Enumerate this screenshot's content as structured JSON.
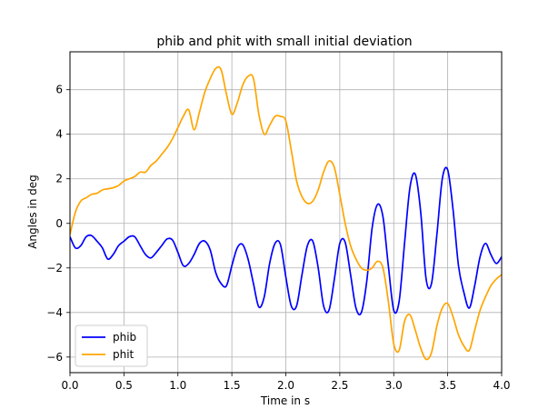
{
  "chart_data": {
    "type": "line",
    "title": "phib and phit with small initial deviation",
    "xlabel": "Time in s",
    "ylabel": "Angles in deg",
    "xlim": [
      0,
      4
    ],
    "ylim": [
      -6.7,
      7.7
    ],
    "xticks": [
      0,
      0.5,
      1,
      1.5,
      2,
      2.5,
      3,
      3.5,
      4
    ],
    "xtick_labels": [
      "0.0",
      "0.5",
      "1.0",
      "1.5",
      "2.0",
      "2.5",
      "3.0",
      "3.5",
      "4.0"
    ],
    "yticks": [
      -6,
      -4,
      -2,
      0,
      2,
      4,
      6
    ],
    "ytick_labels": [
      "−6",
      "−4",
      "−2",
      "0",
      "2",
      "4",
      "6"
    ],
    "grid": true,
    "legend_position": "lower-left",
    "series": [
      {
        "name": "phib",
        "color": "#0000ff",
        "x": [
          0,
          0.05,
          0.1,
          0.15,
          0.2,
          0.25,
          0.3,
          0.35,
          0.4,
          0.45,
          0.5,
          0.55,
          0.6,
          0.65,
          0.7,
          0.75,
          0.8,
          0.85,
          0.9,
          0.95,
          1.0,
          1.05,
          1.1,
          1.15,
          1.2,
          1.25,
          1.3,
          1.35,
          1.4,
          1.45,
          1.5,
          1.55,
          1.6,
          1.65,
          1.7,
          1.75,
          1.8,
          1.85,
          1.9,
          1.95,
          2.0,
          2.05,
          2.1,
          2.15,
          2.2,
          2.25,
          2.3,
          2.35,
          2.4,
          2.45,
          2.5,
          2.55,
          2.6,
          2.65,
          2.7,
          2.75,
          2.8,
          2.85,
          2.9,
          2.95,
          3.0,
          3.05,
          3.1,
          3.15,
          3.2,
          3.25,
          3.3,
          3.35,
          3.4,
          3.45,
          3.5,
          3.55,
          3.6,
          3.65,
          3.7,
          3.75,
          3.8,
          3.85,
          3.9,
          3.95,
          4.0
        ],
        "y": [
          -0.6,
          -1.1,
          -1.0,
          -0.6,
          -0.55,
          -0.8,
          -1.1,
          -1.6,
          -1.4,
          -1.0,
          -0.8,
          -0.6,
          -0.6,
          -1.0,
          -1.4,
          -1.55,
          -1.3,
          -1.0,
          -0.7,
          -0.75,
          -1.3,
          -1.9,
          -1.8,
          -1.4,
          -0.9,
          -0.8,
          -1.2,
          -2.2,
          -2.7,
          -2.8,
          -1.9,
          -1.1,
          -0.95,
          -1.6,
          -2.7,
          -3.75,
          -3.3,
          -1.8,
          -0.9,
          -0.95,
          -2.4,
          -3.7,
          -3.7,
          -2.3,
          -1.0,
          -0.8,
          -2.0,
          -3.7,
          -3.9,
          -2.5,
          -0.9,
          -0.85,
          -2.3,
          -3.8,
          -4.0,
          -2.6,
          -0.2,
          0.85,
          0.3,
          -1.9,
          -3.9,
          -3.5,
          -0.9,
          1.6,
          2.2,
          0.5,
          -2.5,
          -2.7,
          -0.5,
          2.0,
          2.4,
          0.6,
          -1.9,
          -3.1,
          -3.8,
          -2.8,
          -1.5,
          -0.9,
          -1.4,
          -1.8,
          -1.5
        ],
        "x_dense": true
      },
      {
        "name": "phit",
        "color": "#ffa500",
        "x": [
          0,
          0.05,
          0.1,
          0.15,
          0.2,
          0.25,
          0.3,
          0.35,
          0.4,
          0.45,
          0.5,
          0.55,
          0.6,
          0.65,
          0.7,
          0.75,
          0.8,
          0.85,
          0.9,
          0.95,
          1.0,
          1.05,
          1.1,
          1.15,
          1.2,
          1.25,
          1.3,
          1.35,
          1.4,
          1.45,
          1.5,
          1.55,
          1.6,
          1.65,
          1.7,
          1.75,
          1.8,
          1.85,
          1.9,
          1.95,
          2.0,
          2.05,
          2.1,
          2.15,
          2.2,
          2.25,
          2.3,
          2.35,
          2.4,
          2.45,
          2.5,
          2.55,
          2.6,
          2.65,
          2.7,
          2.75,
          2.8,
          2.85,
          2.9,
          2.95,
          3.0,
          3.05,
          3.1,
          3.15,
          3.2,
          3.25,
          3.3,
          3.35,
          3.4,
          3.45,
          3.5,
          3.55,
          3.6,
          3.65,
          3.7,
          3.75,
          3.8,
          3.85,
          3.9,
          3.95,
          4.0
        ],
        "y": [
          -0.5,
          0.5,
          1.0,
          1.15,
          1.3,
          1.35,
          1.5,
          1.55,
          1.6,
          1.7,
          1.9,
          2.0,
          2.1,
          2.3,
          2.3,
          2.6,
          2.8,
          3.1,
          3.4,
          3.8,
          4.3,
          4.8,
          5.1,
          4.2,
          5.0,
          5.9,
          6.5,
          6.95,
          6.9,
          5.8,
          4.9,
          5.4,
          6.2,
          6.6,
          6.5,
          4.9,
          4.0,
          4.4,
          4.8,
          4.8,
          4.6,
          3.3,
          1.9,
          1.2,
          0.9,
          1.0,
          1.5,
          2.3,
          2.8,
          2.5,
          1.3,
          0.0,
          -1.0,
          -1.6,
          -2.0,
          -2.1,
          -2.0,
          -1.7,
          -2.0,
          -3.5,
          -5.4,
          -5.7,
          -4.4,
          -4.1,
          -4.8,
          -5.6,
          -6.1,
          -5.8,
          -4.6,
          -3.8,
          -3.6,
          -4.2,
          -5.0,
          -5.5,
          -5.7,
          -4.8,
          -3.9,
          -3.3,
          -2.8,
          -2.5,
          -2.3
        ],
        "x_dense": true
      }
    ]
  }
}
